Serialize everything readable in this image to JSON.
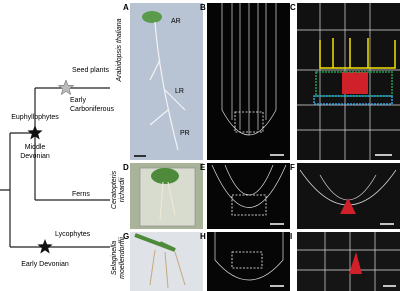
{
  "tree": {
    "nodes": [
      {
        "label": "Seed plants",
        "age": [
          "Early",
          "Carboniferous"
        ]
      },
      {
        "label": "Euphyllophytes",
        "age": [
          "Middle",
          "Devonian"
        ]
      },
      {
        "label": "Ferns"
      },
      {
        "label": "Lycophytes",
        "age": [
          "Early Devonian"
        ]
      }
    ]
  },
  "species": [
    [
      "Arabidopsis thaliana"
    ],
    [
      "Ceratopteris",
      "richardii"
    ],
    [
      "Selaginella",
      "moellendorffii"
    ]
  ],
  "panels": [
    "A",
    "B",
    "C",
    "D",
    "E",
    "F",
    "G",
    "H",
    "I"
  ],
  "root_labels": [
    "AR",
    "LR",
    "PR"
  ]
}
